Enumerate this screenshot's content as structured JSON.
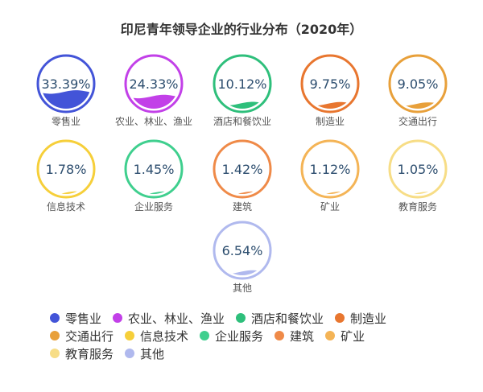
{
  "chart_data": {
    "type": "liquid-fill",
    "title": "印尼青年领导企业的行业分布（2020年）",
    "unit": "%",
    "categories": [
      "零售业",
      "农业、林业、渔业",
      "酒店和餐饮业",
      "制造业",
      "交通出行",
      "信息技术",
      "企业服务",
      "建筑",
      "矿业",
      "教育服务",
      "其他"
    ],
    "values": [
      33.39,
      24.33,
      10.12,
      9.75,
      9.05,
      1.78,
      1.45,
      1.42,
      1.12,
      1.05,
      6.54
    ],
    "value_labels": [
      "33.39%",
      "24.33%",
      "10.12%",
      "9.75%",
      "9.05%",
      "1.78%",
      "1.45%",
      "1.42%",
      "1.12%",
      "1.05%",
      "6.54%"
    ],
    "colors": [
      "#4354d8",
      "#c240e8",
      "#2ebf7b",
      "#e8762f",
      "#e8a03a",
      "#f6cf3a",
      "#3fcf8e",
      "#ef8a48",
      "#f4b456",
      "#f7dd86",
      "#b0b9ee"
    ],
    "legend_placement": "bottom",
    "legend_rows": [
      [
        0,
        1,
        2,
        3
      ],
      [
        4,
        5,
        6,
        7,
        8
      ],
      [
        9,
        10
      ]
    ]
  },
  "style": {
    "title_color": "#333333",
    "value_text_color": "#2c4d6e",
    "label_color": "#555555"
  }
}
